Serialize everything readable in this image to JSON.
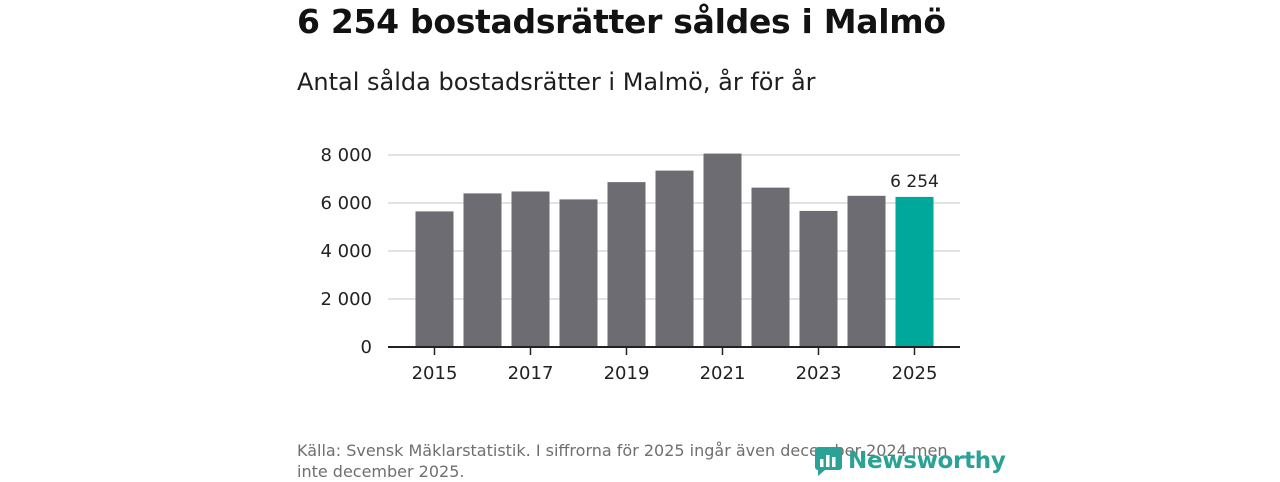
{
  "header": {
    "title": "6 254 bostadsrätter såldes i Malmö",
    "subtitle": "Antal sålda bostadsrätter i Malmö, år för år"
  },
  "chart_data": {
    "type": "bar",
    "categories": [
      "2015",
      "2016",
      "2017",
      "2018",
      "2019",
      "2020",
      "2021",
      "2022",
      "2023",
      "2024",
      "2025"
    ],
    "values": [
      5650,
      6400,
      6480,
      6150,
      6870,
      7350,
      8060,
      6640,
      5670,
      6300,
      6254
    ],
    "x_tick_labels": [
      "2015",
      "2017",
      "2019",
      "2021",
      "2023",
      "2025"
    ],
    "y_ticks": [
      0,
      2000,
      4000,
      6000,
      8000
    ],
    "y_tick_labels": [
      "0",
      "2 000",
      "4 000",
      "6 000",
      "8 000"
    ],
    "ylim": [
      0,
      8000
    ],
    "grid": true,
    "highlight_index": 10,
    "highlight_label": "6 254",
    "colors": {
      "bar": "#6d6c72",
      "highlight": "#00a89c",
      "grid": "#d9d9d9",
      "axis": "#222222"
    }
  },
  "footer": {
    "source": "Källa: Svensk Mäklarstatistik. I siffrorna för 2025 ingår även december 2024 men inte december 2025.",
    "logo_text": "Newsworthy",
    "logo_icon": "newsworthy-logo-icon"
  }
}
